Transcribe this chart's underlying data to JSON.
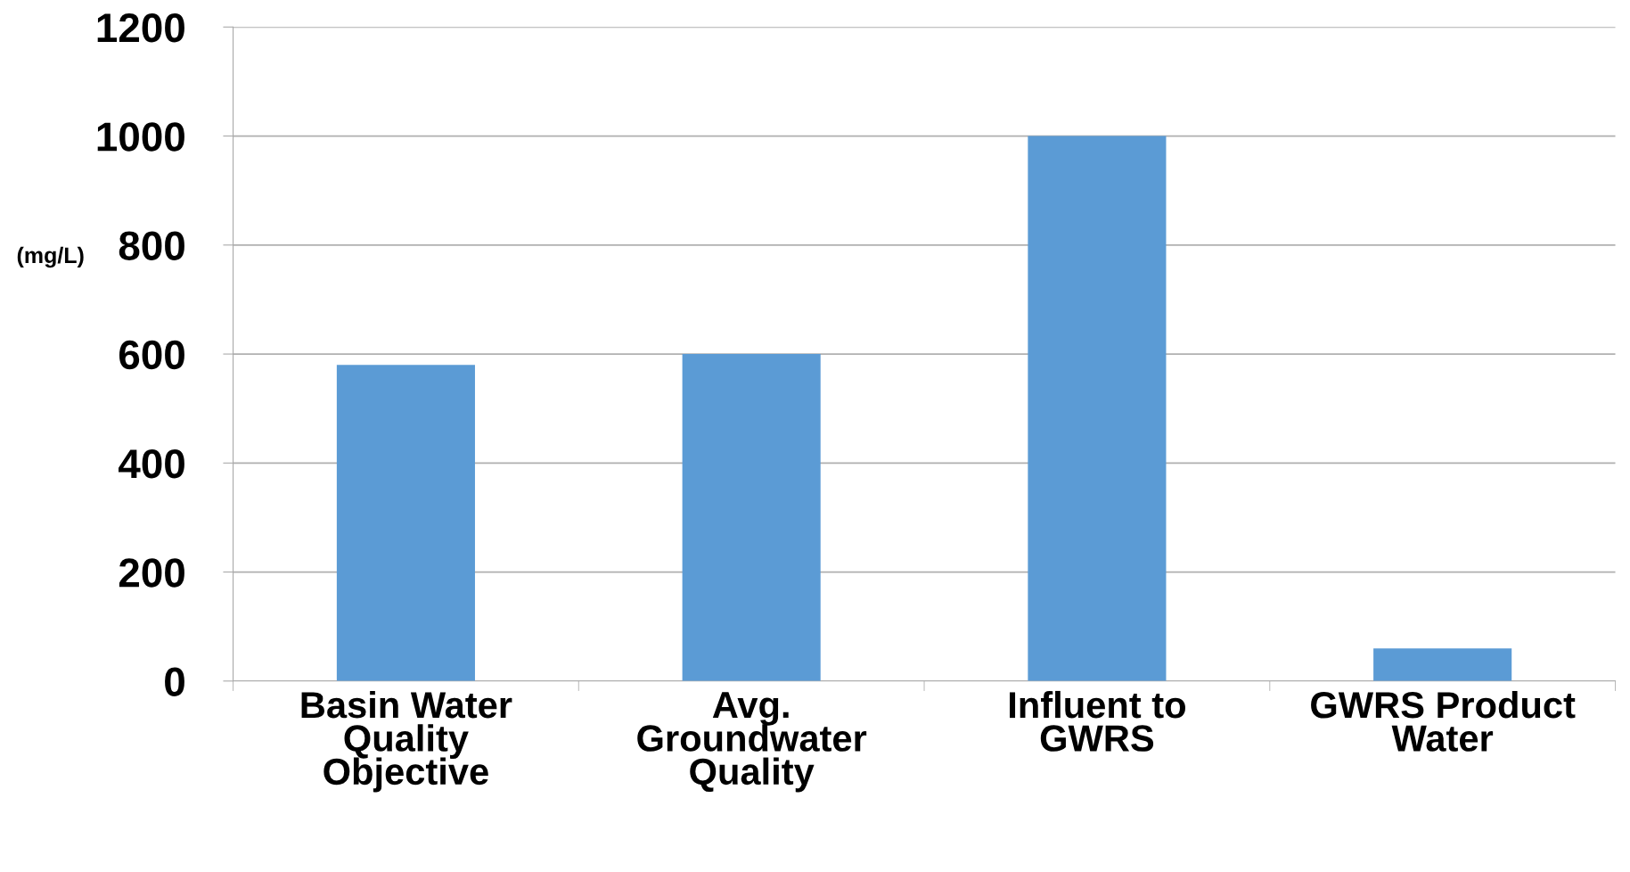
{
  "chart_data": {
    "type": "bar",
    "ylabel": "(mg/L)",
    "categories": [
      "Basin Water\nQuality\nObjective",
      "Avg.\nGroundwater\nQuality",
      "Influent to\nGWRS",
      "GWRS Product\nWater"
    ],
    "values": [
      580,
      600,
      1000,
      60
    ],
    "color": "#5b9bd5",
    "ylim": [
      0,
      1200
    ],
    "yticks": [
      0,
      200,
      400,
      600,
      800,
      1000,
      1200
    ],
    "grid": "y",
    "legend": false
  }
}
